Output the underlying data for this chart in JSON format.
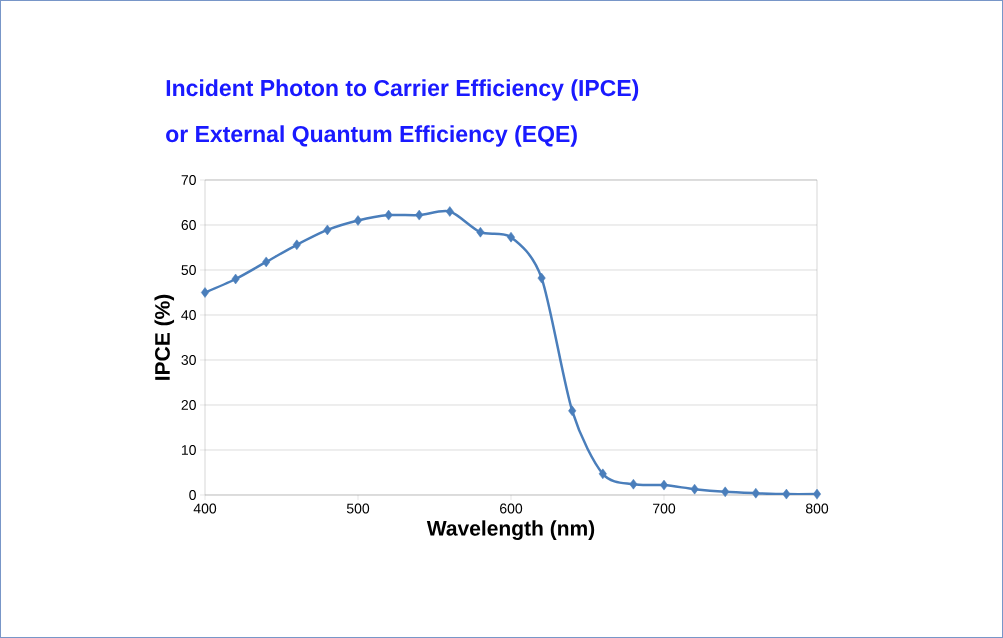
{
  "chart_data": {
    "type": "line",
    "title": "Incident Photon  to Carrier Efficiency (IPCE)",
    "subtitle": "or     External Quantum Efficiency (EQE)",
    "xlabel": "Wavelength (nm)",
    "ylabel": "IPCE (%)",
    "x": [
      400,
      420,
      440,
      460,
      480,
      500,
      520,
      540,
      560,
      580,
      600,
      620,
      640,
      660,
      680,
      700,
      720,
      740,
      760,
      780,
      800
    ],
    "series": [
      {
        "color": "#4a7ebb",
        "values": [
          45,
          48,
          51.8,
          55.6,
          58.9,
          61,
          62.2,
          62.2,
          63,
          58.4,
          57.3,
          48.2,
          18.7,
          4.7,
          2.4,
          2.2,
          1.3,
          0.7,
          0.4,
          0.2,
          0.2
        ]
      }
    ],
    "xlim": [
      400,
      800
    ],
    "xticks": [
      400,
      500,
      600,
      700,
      800
    ],
    "ylim": [
      0,
      70
    ],
    "yticks": [
      0,
      10,
      20,
      30,
      40,
      50,
      60,
      70
    ],
    "grid": "y",
    "marker": "diamond",
    "line_style": "solid"
  }
}
